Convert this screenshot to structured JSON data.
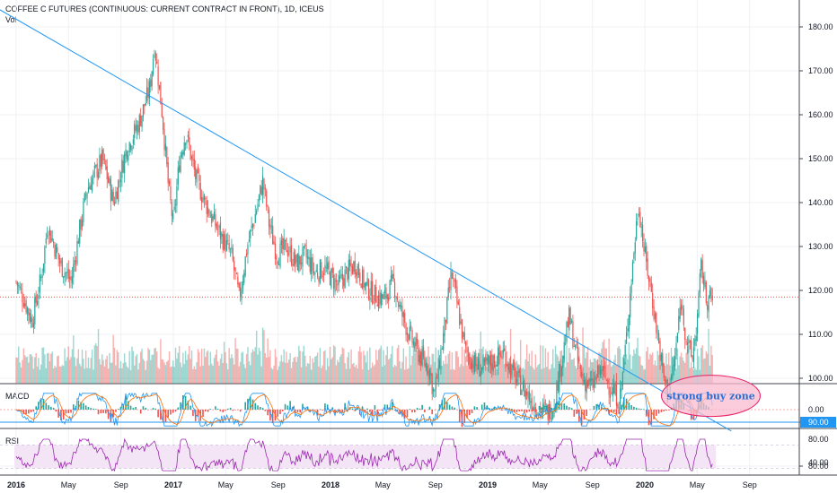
{
  "header": {
    "title": "COFFEE C FUTURES (CONTINUOUS: CURRENT CONTRACT IN FRONT), 1D, ICEUS",
    "vol_label": "Vol"
  },
  "colors": {
    "up": "#26a69a",
    "down": "#ef5350",
    "trendline": "#2196f3",
    "current_price_line": "#ef5350",
    "support_badge": "#2196f3",
    "macd_line": "#2196f3",
    "signal_line": "#ff6d00",
    "rsi_line": "#9c27b0",
    "rsi_band": "#f3e5f5",
    "zone_fill": "#f8bbd0",
    "zone_stroke": "#e91e63"
  },
  "chart_data": [
    {
      "type": "candlestick",
      "title": "COFFEE C FUTURES (CONTINUOUS: CURRENT CONTRACT IN FRONT), 1D, ICEUS",
      "x_ticks": [
        "2016",
        "May",
        "Sep",
        "2017",
        "May",
        "Sep",
        "2018",
        "May",
        "Sep",
        "2019",
        "May",
        "Sep",
        "2020",
        "May",
        "Sep"
      ],
      "y_ticks": [
        180,
        170,
        160,
        150,
        140,
        130,
        120,
        110,
        100,
        90,
        80
      ],
      "ylim": [
        78,
        184
      ],
      "price_label": "90.00",
      "horizontal_line_value": 90,
      "current_price_value": 118.5,
      "trendline": [
        {
          "x": 2015.6,
          "y": 190
        },
        {
          "x": 2020.55,
          "y": 88
        }
      ],
      "annotation": {
        "text": "strong buy zone",
        "x": 2020.42,
        "y": 96
      },
      "price_path": [
        [
          2016.0,
          122
        ],
        [
          2016.05,
          118
        ],
        [
          2016.1,
          113
        ],
        [
          2016.16,
          123
        ],
        [
          2016.2,
          135
        ],
        [
          2016.28,
          126
        ],
        [
          2016.35,
          122
        ],
        [
          2016.4,
          133
        ],
        [
          2016.45,
          143
        ],
        [
          2016.55,
          150
        ],
        [
          2016.62,
          140
        ],
        [
          2016.7,
          152
        ],
        [
          2016.78,
          158
        ],
        [
          2016.85,
          166
        ],
        [
          2016.88,
          176
        ],
        [
          2016.93,
          160
        ],
        [
          2016.97,
          143
        ],
        [
          2017.0,
          135
        ],
        [
          2017.04,
          150
        ],
        [
          2017.08,
          156
        ],
        [
          2017.14,
          146
        ],
        [
          2017.18,
          142
        ],
        [
          2017.24,
          137
        ],
        [
          2017.31,
          132
        ],
        [
          2017.37,
          128
        ],
        [
          2017.42,
          118
        ],
        [
          2017.47,
          130
        ],
        [
          2017.52,
          137
        ],
        [
          2017.57,
          145
        ],
        [
          2017.61,
          135
        ],
        [
          2017.66,
          128
        ],
        [
          2017.72,
          130
        ],
        [
          2017.78,
          126
        ],
        [
          2017.84,
          128
        ],
        [
          2017.9,
          124
        ],
        [
          2017.96,
          125
        ],
        [
          2018.05,
          121
        ],
        [
          2018.1,
          124
        ],
        [
          2018.16,
          126
        ],
        [
          2018.22,
          121
        ],
        [
          2018.28,
          119
        ],
        [
          2018.34,
          118
        ],
        [
          2018.4,
          122
        ],
        [
          2018.44,
          116
        ],
        [
          2018.5,
          110
        ],
        [
          2018.57,
          105
        ],
        [
          2018.63,
          102
        ],
        [
          2018.66,
          96
        ],
        [
          2018.72,
          110
        ],
        [
          2018.77,
          124
        ],
        [
          2018.82,
          114
        ],
        [
          2018.86,
          106
        ],
        [
          2018.92,
          103
        ],
        [
          2018.97,
          102
        ],
        [
          2019.04,
          104
        ],
        [
          2019.1,
          106
        ],
        [
          2019.16,
          101
        ],
        [
          2019.22,
          98
        ],
        [
          2019.28,
          95
        ],
        [
          2019.33,
          93
        ],
        [
          2019.38,
          92
        ],
        [
          2019.42,
          94
        ],
        [
          2019.47,
          104
        ],
        [
          2019.52,
          114
        ],
        [
          2019.56,
          106
        ],
        [
          2019.6,
          100
        ],
        [
          2019.66,
          98
        ],
        [
          2019.72,
          102
        ],
        [
          2019.78,
          98
        ],
        [
          2019.84,
          95
        ],
        [
          2019.88,
          108
        ],
        [
          2019.92,
          125
        ],
        [
          2019.96,
          140
        ],
        [
          2020.0,
          128
        ],
        [
          2020.04,
          120
        ],
        [
          2020.08,
          110
        ],
        [
          2020.12,
          100
        ],
        [
          2020.15,
          97
        ],
        [
          2020.19,
          104
        ],
        [
          2020.23,
          118
        ],
        [
          2020.26,
          110
        ],
        [
          2020.3,
          104
        ],
        [
          2020.33,
          112
        ],
        [
          2020.36,
          126
        ],
        [
          2020.39,
          118
        ],
        [
          2020.43,
          118
        ]
      ]
    },
    {
      "type": "bar",
      "title": "Vol",
      "note": "volume histogram overlaid at the bottom of the price pane"
    },
    {
      "type": "line",
      "title": "MACD",
      "y_ticks": [
        0.0
      ],
      "y_tick_labels": [
        "0.00"
      ],
      "ylim": [
        -1,
        1
      ]
    },
    {
      "type": "line",
      "title": "RSI",
      "y_ticks": [
        80,
        40
      ],
      "y_tick_labels": [
        "80.00",
        "40.00"
      ],
      "ylim": [
        20,
        90
      ],
      "band": [
        30,
        70
      ]
    }
  ]
}
